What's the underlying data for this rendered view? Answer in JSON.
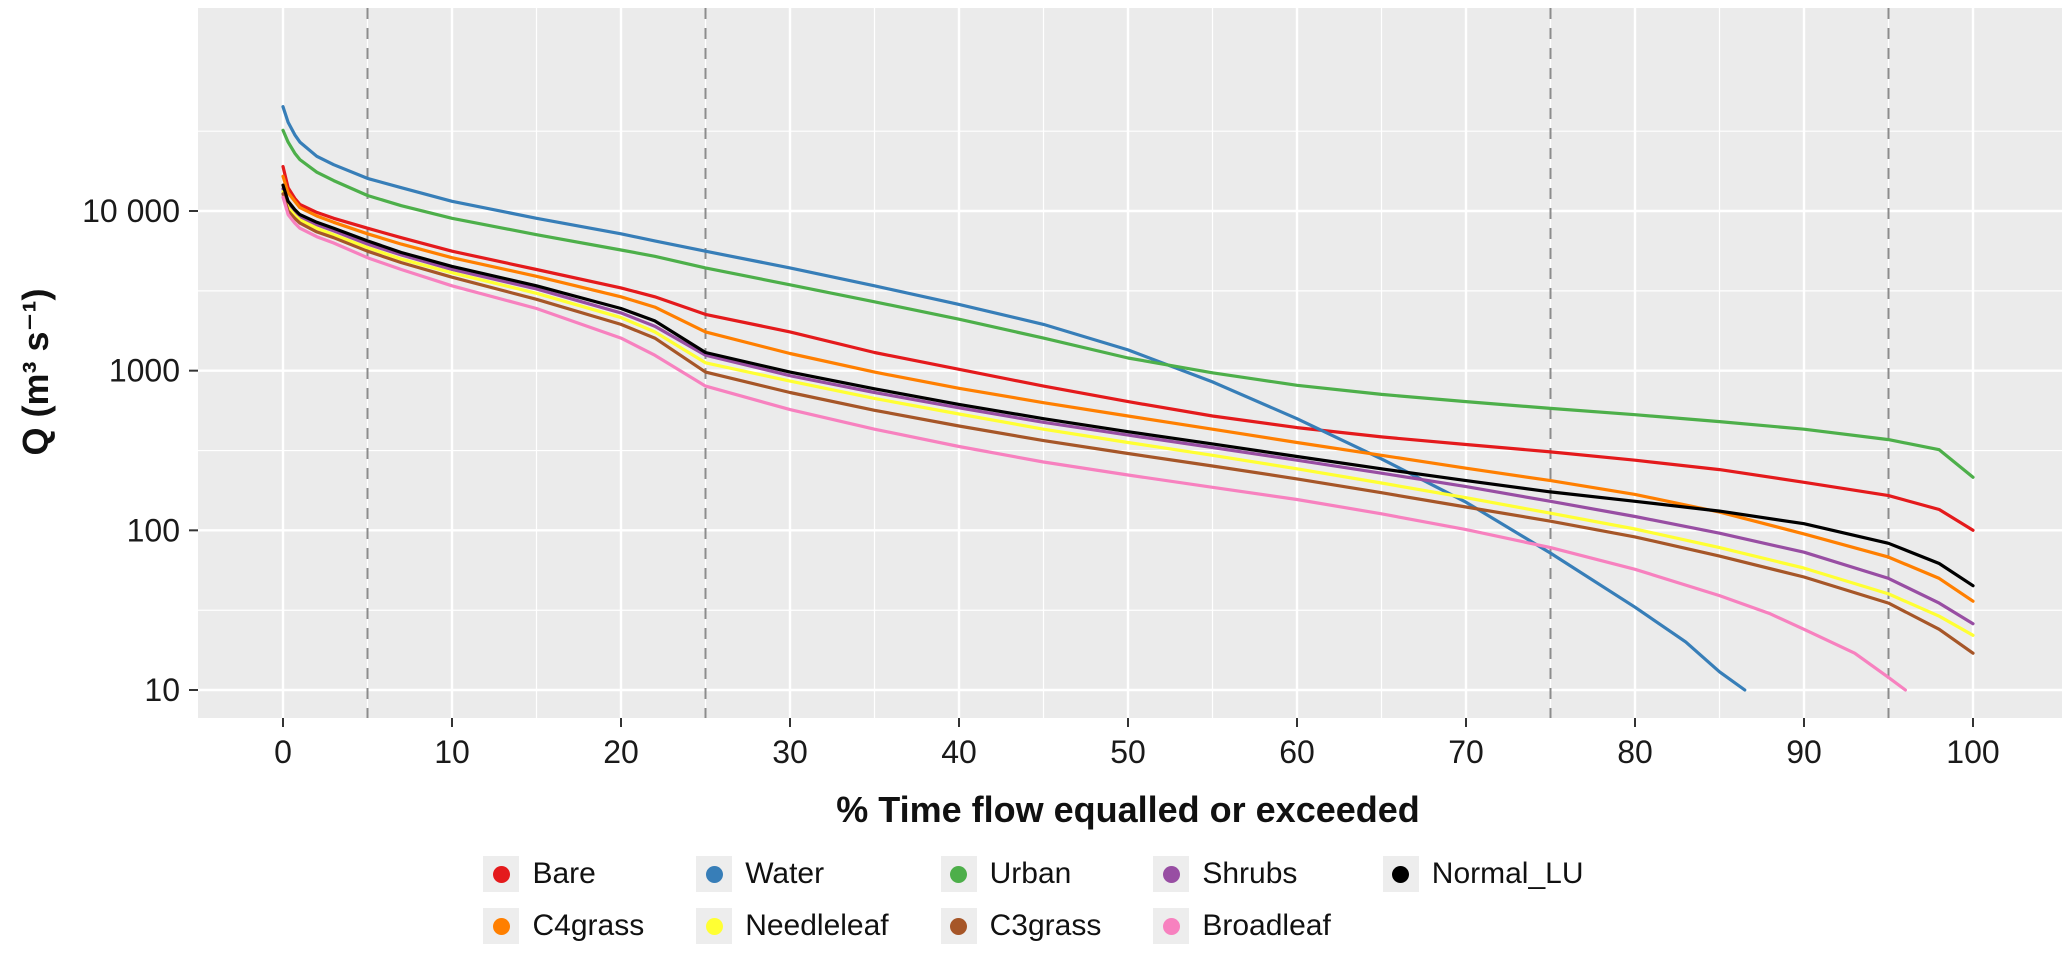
{
  "chart_data": {
    "type": "line",
    "title": "",
    "xlabel": "% Time flow equalled or exceeded",
    "ylabel": "Q (m³ s⁻¹)",
    "x_scale": "linear",
    "y_scale": "log10",
    "xlim": [
      0,
      100
    ],
    "ylim": [
      10,
      10000
    ],
    "grid": "on",
    "legend_position": "bottom",
    "panel_bg": "#EBEBEB",
    "grid_color": "#FFFFFF",
    "reference_line_color": "#8C8C8C",
    "x_ticks": [
      0,
      10,
      20,
      30,
      40,
      50,
      60,
      70,
      80,
      90,
      100
    ],
    "x_minor": [
      5,
      15,
      25,
      35,
      45,
      55,
      65,
      75,
      85,
      95
    ],
    "y_ticks": [
      {
        "value": 10,
        "label": "10"
      },
      {
        "value": 100,
        "label": "100"
      },
      {
        "value": 1000,
        "label": "1000"
      },
      {
        "value": 10000,
        "label": "10 000"
      }
    ],
    "y_minor": [
      31.6,
      316,
      3162,
      31623
    ],
    "reference_lines_x": [
      5,
      25,
      75,
      95
    ],
    "series": [
      {
        "name": "Bare",
        "color": "#E41A1C",
        "x": [
          0,
          0.3,
          0.7,
          1,
          2,
          3,
          5,
          7,
          10,
          15,
          20,
          22,
          25,
          30,
          35,
          40,
          45,
          50,
          55,
          60,
          65,
          70,
          75,
          80,
          85,
          90,
          95,
          98,
          100
        ],
        "y": [
          19000,
          14000,
          12000,
          11000,
          9800,
          9000,
          7800,
          6800,
          5600,
          4300,
          3300,
          2900,
          2250,
          1750,
          1300,
          1020,
          800,
          640,
          520,
          440,
          385,
          345,
          310,
          275,
          240,
          200,
          165,
          135,
          100
        ]
      },
      {
        "name": "Water",
        "color": "#377EB8",
        "x": [
          0,
          0.3,
          0.7,
          1,
          2,
          3,
          5,
          7,
          10,
          15,
          20,
          22,
          25,
          30,
          35,
          40,
          45,
          50,
          55,
          60,
          65,
          70,
          75,
          80,
          83,
          85,
          86.5
        ],
        "y": [
          45000,
          36000,
          30000,
          27000,
          22000,
          19500,
          16000,
          14000,
          11500,
          9000,
          7200,
          6500,
          5600,
          4400,
          3400,
          2600,
          1950,
          1350,
          850,
          500,
          280,
          150,
          72,
          33,
          20,
          13,
          10
        ]
      },
      {
        "name": "Urban",
        "color": "#4DAF4A",
        "x": [
          0,
          0.3,
          0.7,
          1,
          2,
          3,
          5,
          7,
          10,
          15,
          20,
          22,
          25,
          30,
          35,
          40,
          45,
          50,
          55,
          60,
          65,
          70,
          75,
          80,
          85,
          90,
          95,
          98,
          100
        ],
        "y": [
          32000,
          27000,
          23000,
          21000,
          17500,
          15500,
          12500,
          10800,
          9000,
          7100,
          5700,
          5200,
          4400,
          3450,
          2700,
          2100,
          1600,
          1200,
          970,
          810,
          710,
          640,
          580,
          530,
          480,
          430,
          370,
          320,
          215
        ]
      },
      {
        "name": "Shrubs",
        "color": "#984EA3",
        "x": [
          0,
          0.3,
          0.7,
          1,
          2,
          3,
          5,
          7,
          10,
          15,
          20,
          22,
          25,
          30,
          35,
          40,
          45,
          50,
          55,
          60,
          65,
          70,
          75,
          80,
          85,
          90,
          95,
          98,
          100
        ],
        "y": [
          13800,
          11000,
          9800,
          9200,
          8200,
          7500,
          6200,
          5300,
          4300,
          3250,
          2300,
          1900,
          1250,
          930,
          730,
          585,
          475,
          395,
          330,
          275,
          228,
          188,
          152,
          122,
          96,
          73,
          50,
          35,
          26
        ]
      },
      {
        "name": "C4grass",
        "color": "#FF7F00",
        "x": [
          0,
          0.3,
          0.7,
          1,
          2,
          3,
          5,
          7,
          10,
          15,
          20,
          22,
          25,
          30,
          35,
          40,
          45,
          50,
          55,
          60,
          65,
          70,
          75,
          80,
          85,
          90,
          95,
          98,
          100
        ],
        "y": [
          16500,
          13000,
          11500,
          10500,
          9300,
          8500,
          7200,
          6200,
          5100,
          3900,
          2900,
          2500,
          1750,
          1280,
          980,
          775,
          630,
          520,
          430,
          355,
          295,
          245,
          205,
          168,
          130,
          95,
          68,
          50,
          36
        ]
      },
      {
        "name": "Needleleaf",
        "color": "#FFFF33",
        "x": [
          0,
          0.3,
          0.7,
          1,
          2,
          3,
          5,
          7,
          10,
          15,
          20,
          22,
          25,
          30,
          35,
          40,
          45,
          50,
          55,
          60,
          65,
          70,
          75,
          80,
          85,
          90,
          95,
          98,
          100
        ],
        "y": [
          13200,
          10500,
          9400,
          8800,
          7800,
          7100,
          5900,
          5000,
          4100,
          3050,
          2150,
          1750,
          1120,
          860,
          670,
          535,
          430,
          355,
          295,
          243,
          198,
          160,
          128,
          102,
          78,
          58,
          40,
          29,
          22
        ]
      },
      {
        "name": "C3grass",
        "color": "#A65628",
        "x": [
          0,
          0.3,
          0.7,
          1,
          2,
          3,
          5,
          7,
          10,
          15,
          20,
          22,
          25,
          30,
          35,
          40,
          45,
          50,
          55,
          60,
          65,
          70,
          75,
          80,
          85,
          90,
          95,
          98,
          100
        ],
        "y": [
          12800,
          10000,
          9000,
          8400,
          7400,
          6800,
          5600,
          4750,
          3850,
          2800,
          1950,
          1600,
          980,
          730,
          565,
          450,
          365,
          303,
          253,
          210,
          172,
          140,
          114,
          91,
          69,
          51,
          35,
          24,
          17
        ]
      },
      {
        "name": "Broadleaf",
        "color": "#F781BF",
        "x": [
          0,
          0.3,
          0.7,
          1,
          2,
          3,
          5,
          7,
          10,
          15,
          20,
          22,
          25,
          30,
          35,
          40,
          45,
          50,
          55,
          60,
          65,
          70,
          75,
          80,
          85,
          88,
          90,
          93,
          95,
          96
        ],
        "y": [
          12200,
          9500,
          8400,
          7800,
          6900,
          6300,
          5100,
          4300,
          3400,
          2450,
          1600,
          1250,
          800,
          570,
          430,
          335,
          268,
          222,
          186,
          156,
          127,
          101,
          78,
          57,
          39,
          30,
          24,
          17,
          12,
          10
        ]
      },
      {
        "name": "Normal_LU",
        "color": "#000000",
        "x": [
          0,
          0.3,
          0.7,
          1,
          2,
          3,
          5,
          7,
          10,
          15,
          20,
          22,
          25,
          30,
          35,
          40,
          45,
          50,
          55,
          60,
          65,
          70,
          75,
          80,
          85,
          90,
          95,
          98,
          100
        ],
        "y": [
          14500,
          11500,
          10200,
          9500,
          8500,
          7800,
          6500,
          5500,
          4500,
          3400,
          2450,
          2050,
          1300,
          980,
          770,
          615,
          500,
          415,
          348,
          290,
          243,
          205,
          174,
          152,
          132,
          110,
          83,
          62,
          45
        ]
      }
    ]
  }
}
